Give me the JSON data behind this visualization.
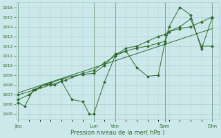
{
  "xlabel": "Pression niveau de la mer( hPa )",
  "ylim": [
    1004.5,
    1016.5
  ],
  "yticks": [
    1005,
    1006,
    1007,
    1008,
    1009,
    1010,
    1011,
    1012,
    1013,
    1014,
    1015,
    1016
  ],
  "xlim": [
    -0.1,
    9.3
  ],
  "bg_color": "#cce8ea",
  "grid_color": "#aacfcf",
  "line_color": "#2d6b2d",
  "day_labels": [
    "Jeu",
    "Lun",
    "Ven",
    "Sam",
    "Dim"
  ],
  "day_positions": [
    0.0,
    3.5,
    4.5,
    6.8,
    9.0
  ],
  "vline_positions": [
    0.0,
    3.5,
    4.5,
    6.8,
    9.0
  ],
  "series_jagged": {
    "x": [
      0.0,
      0.3,
      0.7,
      1.0,
      1.3,
      1.7,
      2.0,
      2.5,
      3.0,
      3.3,
      3.5,
      4.0,
      4.5,
      5.0,
      5.5,
      6.0,
      6.5,
      6.8,
      7.0,
      7.5,
      8.0,
      8.5,
      9.0
    ],
    "y": [
      1006.2,
      1005.8,
      1007.5,
      1007.8,
      1008.1,
      1008.0,
      1008.4,
      1006.5,
      1006.3,
      1005.0,
      1005.0,
      1008.3,
      1011.0,
      1011.5,
      1009.8,
      1008.9,
      1009.0,
      1012.3,
      1014.0,
      1016.0,
      1015.2,
      1011.7,
      1014.9
    ]
  },
  "series_smooth": {
    "x": [
      0.0,
      0.5,
      1.0,
      1.5,
      2.0,
      2.5,
      3.0,
      3.5,
      4.0,
      4.5,
      5.0,
      5.5,
      6.0,
      6.5,
      6.8,
      7.0,
      7.5,
      8.0,
      8.5,
      9.0
    ],
    "y": [
      1006.5,
      1007.0,
      1007.8,
      1008.2,
      1008.6,
      1008.9,
      1009.1,
      1009.2,
      1010.0,
      1011.2,
      1011.5,
      1011.8,
      1012.0,
      1012.3,
      1012.5,
      1013.5,
      1014.0,
      1014.8,
      1012.0,
      1012.0
    ]
  },
  "series_gradual": {
    "x": [
      0.0,
      0.8,
      1.5,
      2.2,
      3.0,
      3.5,
      4.0,
      4.5,
      5.0,
      5.5,
      6.0,
      6.5,
      6.8,
      7.0,
      7.5,
      8.0,
      8.5,
      9.0
    ],
    "y": [
      1007.0,
      1007.5,
      1008.0,
      1008.5,
      1009.2,
      1009.5,
      1010.3,
      1011.0,
      1011.8,
      1012.0,
      1012.5,
      1013.0,
      1013.2,
      1013.5,
      1013.8,
      1014.0,
      1014.5,
      1015.0
    ]
  },
  "series_linear": {
    "x": [
      0.0,
      9.0
    ],
    "y": [
      1007.2,
      1013.8
    ]
  }
}
